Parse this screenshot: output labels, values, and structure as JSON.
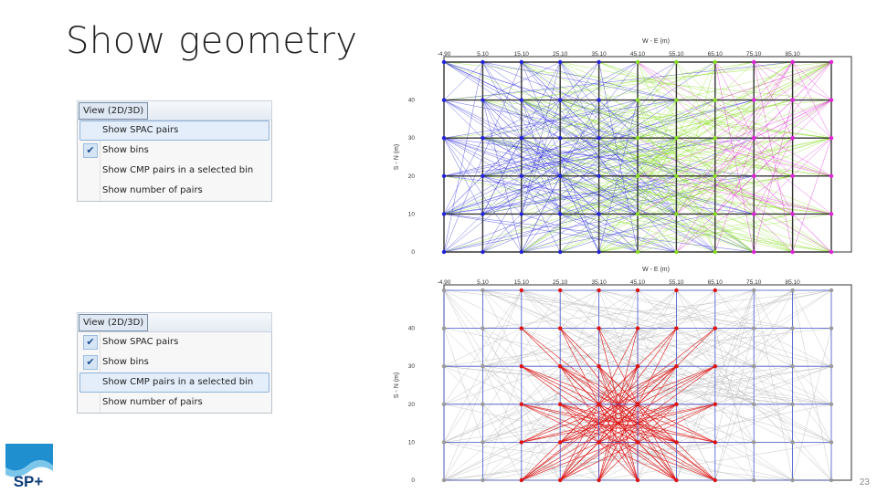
{
  "slide": {
    "title": "Show geometry",
    "page_number": "23",
    "logo_text": "SP+"
  },
  "menu1": {
    "header": "View (2D/3D)",
    "items": [
      {
        "label": "Show SPAC pairs",
        "checked": false,
        "highlighted": true
      },
      {
        "label": "Show bins",
        "checked": true,
        "highlighted": false
      },
      {
        "label": "Show CMP pairs in a selected bin",
        "checked": false,
        "highlighted": false
      },
      {
        "label": "Show number of pairs",
        "checked": false,
        "highlighted": false
      }
    ]
  },
  "menu2": {
    "header": "View (2D/3D)",
    "items": [
      {
        "label": "Show SPAC pairs",
        "checked": true,
        "highlighted": false
      },
      {
        "label": "Show bins",
        "checked": true,
        "highlighted": false
      },
      {
        "label": "Show CMP pairs in a selected bin",
        "checked": false,
        "highlighted": true
      },
      {
        "label": "Show number of pairs",
        "checked": false,
        "highlighted": false
      }
    ]
  },
  "plot_common": {
    "xlabel": "W - E (m)",
    "ylabel": "S - N (m)",
    "x_ticks": [
      "-4.90",
      "5.10",
      "15.10",
      "25.10",
      "35.10",
      "45.10",
      "55.10",
      "65.10",
      "75.10",
      "85.10"
    ],
    "y_ticks": [
      "0",
      "10",
      "20",
      "30",
      "40"
    ]
  },
  "plot1": {
    "colors": {
      "blue": "#2222dd",
      "green": "#88dd22",
      "magenta": "#e022d8",
      "grid": "#333333"
    }
  },
  "plot2": {
    "colors": {
      "gray": "#bbbbbb",
      "red": "#dd1111",
      "blue": "#4455cc",
      "dark": "#555555"
    }
  }
}
